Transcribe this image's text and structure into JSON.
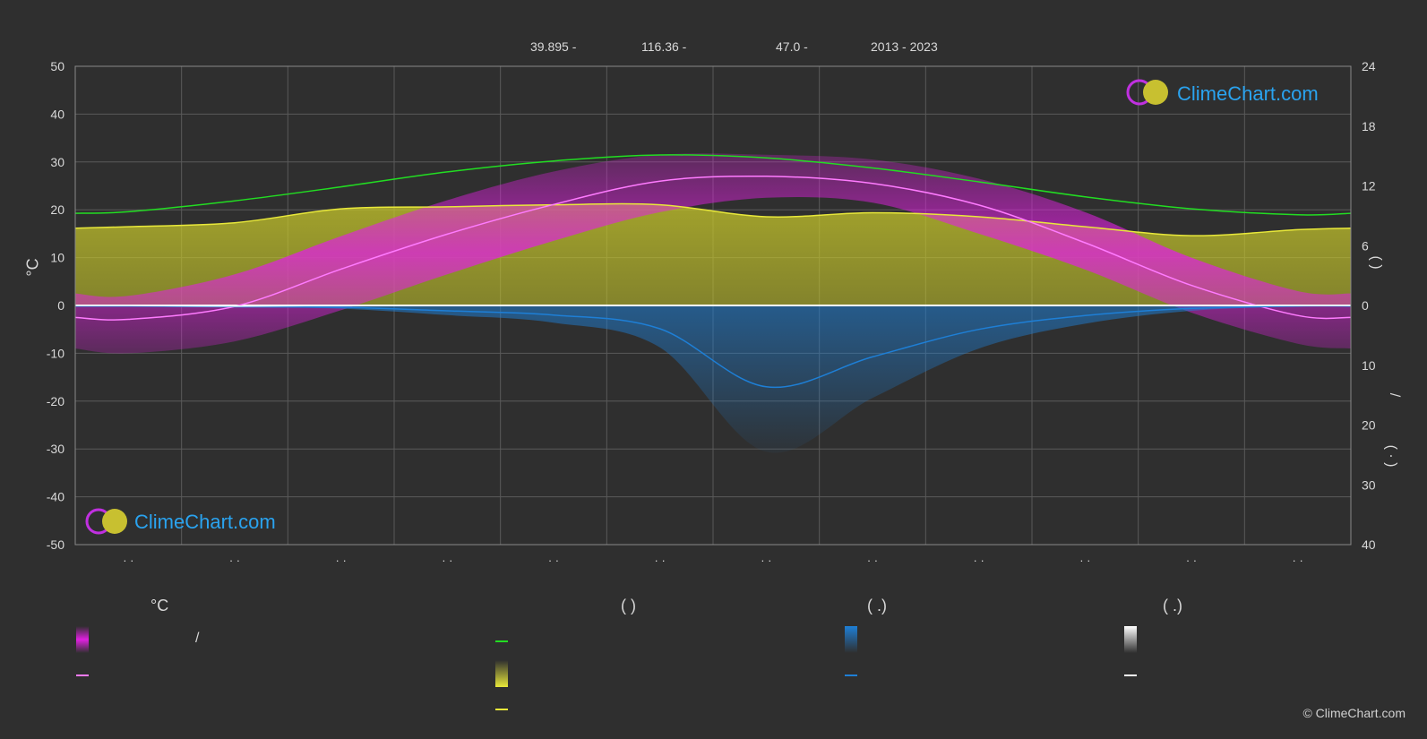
{
  "header": {
    "lat": "39.895 -",
    "lon": "116.36 -",
    "elev": "47.0 -",
    "years": "2013 - 2023"
  },
  "logo": {
    "text": "ClimeChart.com"
  },
  "copyright": "© ClimeChart.com",
  "left_axis_unit": "°C",
  "right_axis_marks": {
    "upper": "(          )",
    "slash": "/",
    "lower": "( · )"
  },
  "legend": {
    "temp_header": "°C",
    "sun_header": "(          )",
    "rain_header": "(   .)",
    "snow_header": "(   .)",
    "slash": "/"
  },
  "colors": {
    "background": "#2f2f2f",
    "grid": "#5a5a5a",
    "temp_band": "#e020e0",
    "mean_temp": "#ff7bff",
    "daylight": "#22dd22",
    "sunshine": "#e8e83a",
    "sunshine_band": "#c8c82a",
    "rain": "#1e7fd6",
    "snow": "#ffffff"
  },
  "chart_data": {
    "type": "area",
    "x": [
      1,
      2,
      3,
      4,
      5,
      6,
      7,
      8,
      9,
      10,
      11,
      12
    ],
    "left_axis": {
      "range": [
        -50,
        50
      ],
      "ticks": [
        50,
        40,
        30,
        20,
        10,
        0,
        -10,
        -20,
        -30,
        -40,
        -50
      ]
    },
    "right_axis_top": {
      "range": [
        0,
        24
      ],
      "ticks": [
        24,
        18,
        12,
        6,
        0
      ]
    },
    "right_axis_bottom": {
      "range": [
        0,
        40
      ],
      "ticks": [
        0,
        10,
        20,
        30,
        40
      ]
    },
    "grid": true,
    "series": [
      {
        "values": [
          -2.9,
          -0.2,
          7.6,
          14.9,
          21.1,
          26.0,
          27.0,
          25.5,
          21.0,
          13.1,
          4.2,
          -2.1
        ]
      },
      {
        "values": [
          9.4,
          10.5,
          11.9,
          13.4,
          14.5,
          15.1,
          14.8,
          13.8,
          12.4,
          10.9,
          9.7,
          9.1
        ]
      },
      {
        "values": [
          7.9,
          8.3,
          9.7,
          9.9,
          10.1,
          10.1,
          8.9,
          9.3,
          8.9,
          7.9,
          7.0,
          7.6
        ]
      },
      {
        "values": [
          0.1,
          0.2,
          0.3,
          0.9,
          1.6,
          3.9,
          13.6,
          8.6,
          4.0,
          1.7,
          0.5,
          0.1
        ]
      },
      {
        "values": [
          0.0,
          0.1,
          0.0,
          0.0,
          0.0,
          0.0,
          0.0,
          0.0,
          0.0,
          0.0,
          0.0,
          0.0
        ]
      }
    ],
    "temp_range_daily": {
      "max": [
        2.0,
        6.5,
        14.5,
        22.0,
        28.0,
        31.5,
        31.5,
        30.5,
        26.5,
        19.5,
        10.0,
        3.0
      ],
      "min": [
        -10.0,
        -7.5,
        -1.0,
        6.5,
        13.5,
        19.5,
        22.5,
        21.5,
        15.0,
        7.5,
        -1.5,
        -8.0
      ]
    }
  }
}
